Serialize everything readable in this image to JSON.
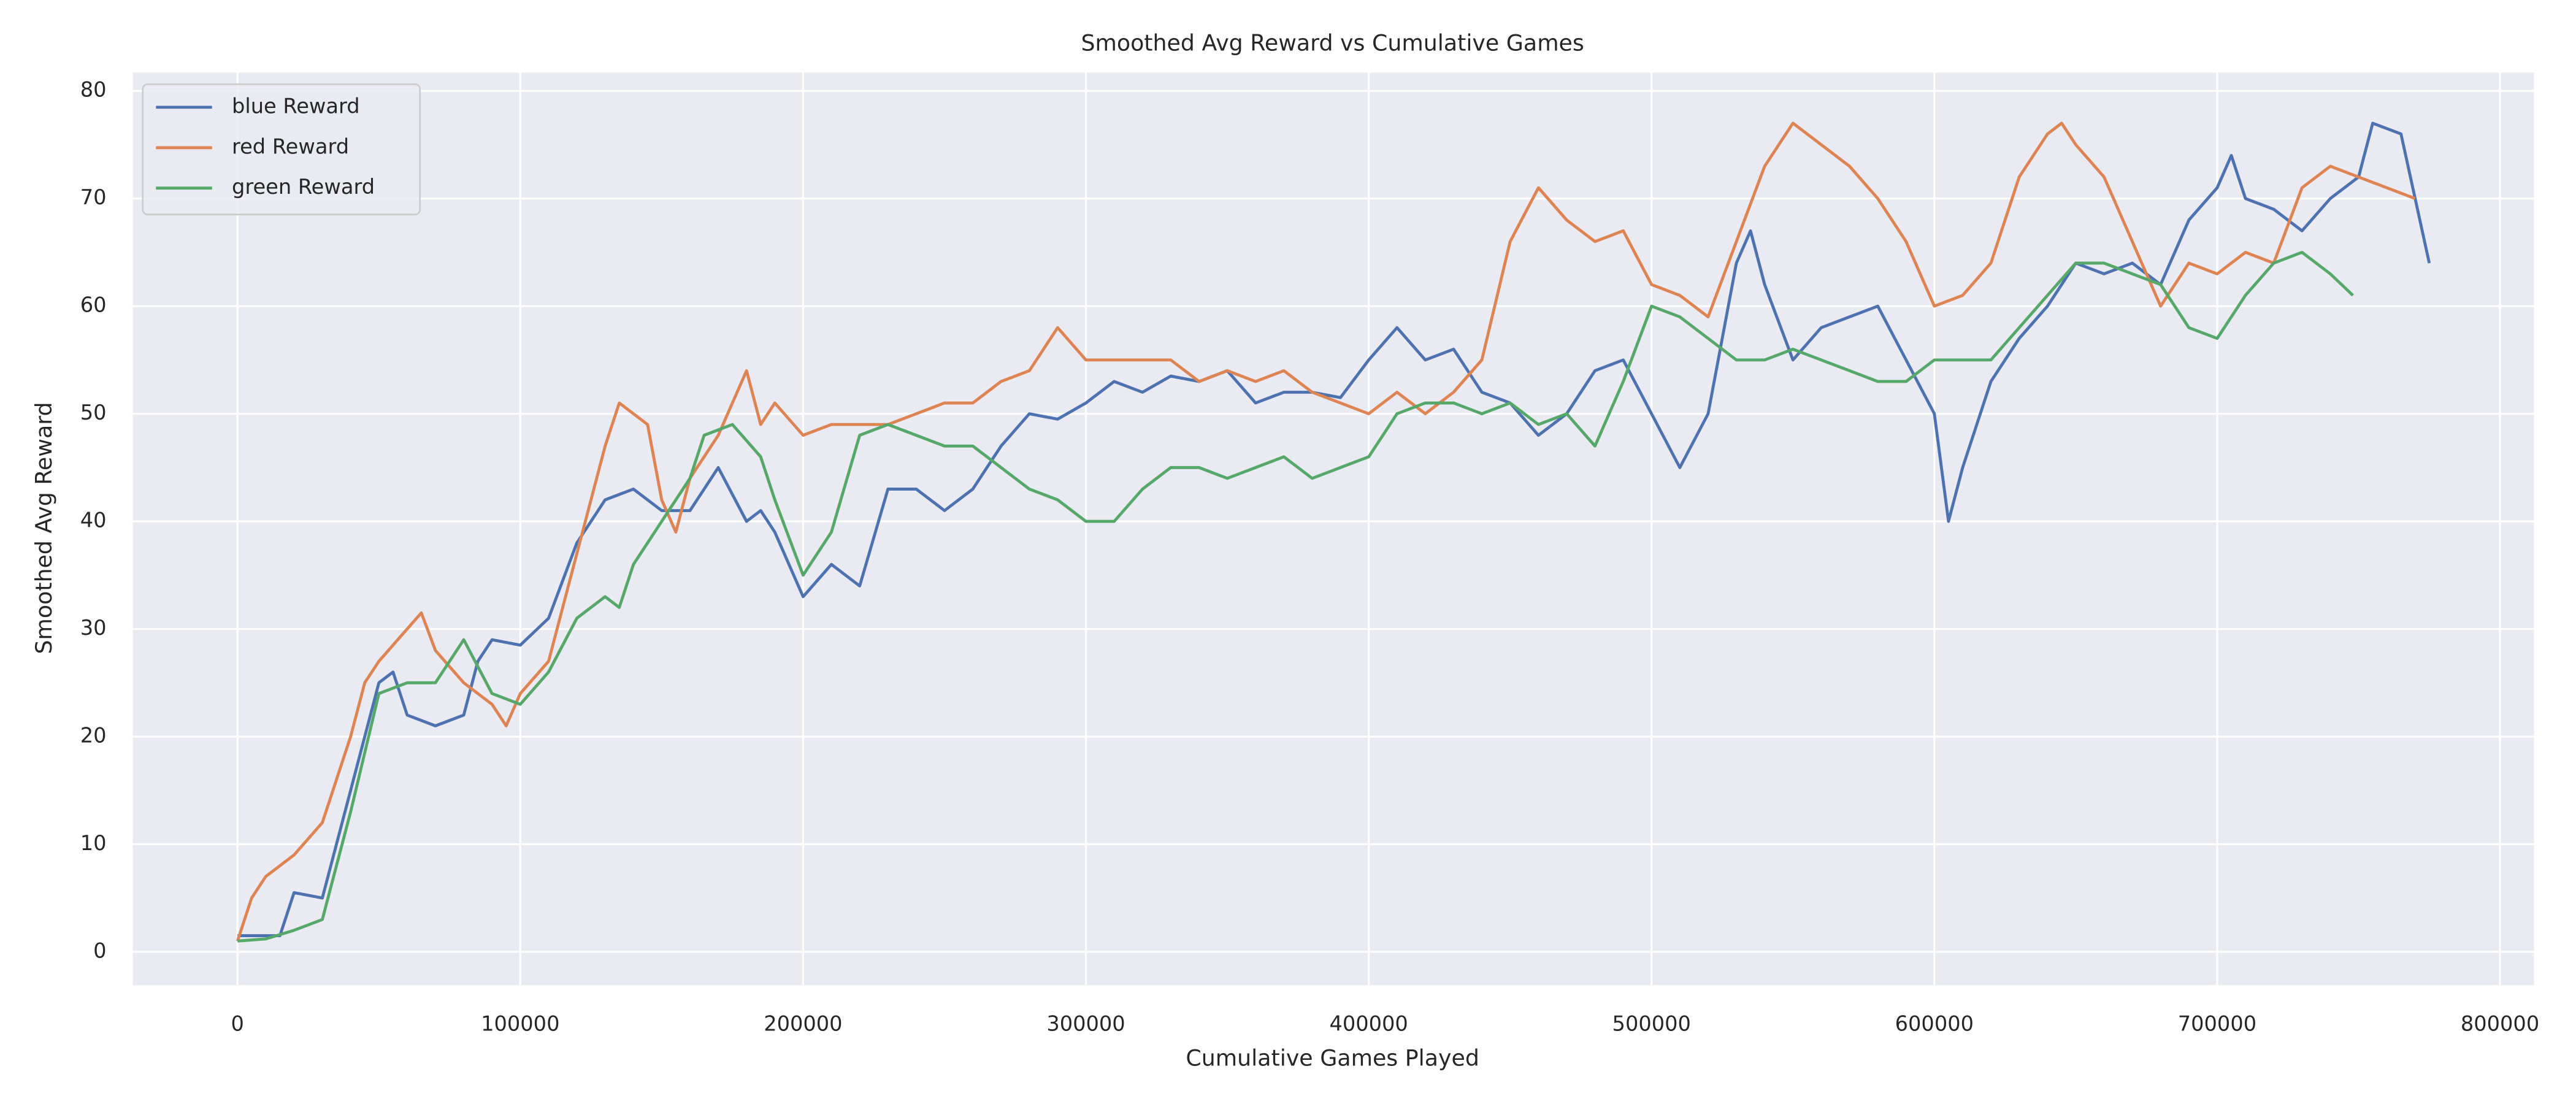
{
  "chart_data": {
    "type": "line",
    "title": "Smoothed Avg Reward vs Cumulative Games",
    "x_label": "Cumulative Games Played",
    "y_label": "Smoothed Avg Reward",
    "xlim": [
      -37000,
      812000
    ],
    "ylim": [
      -3.1,
      81.7
    ],
    "xticks": [
      0,
      100000,
      200000,
      300000,
      400000,
      500000,
      600000,
      700000,
      800000
    ],
    "yticks": [
      0,
      10,
      20,
      30,
      40,
      50,
      60,
      70,
      80
    ],
    "grid": true,
    "legend": "upper left",
    "series": [
      {
        "name": "blue Reward",
        "color": "#4c72b0",
        "x": [
          0,
          10000,
          15000,
          20000,
          30000,
          40000,
          50000,
          55000,
          60000,
          70000,
          80000,
          85000,
          90000,
          100000,
          110000,
          120000,
          130000,
          140000,
          150000,
          160000,
          170000,
          180000,
          185000,
          190000,
          200000,
          210000,
          220000,
          230000,
          240000,
          250000,
          260000,
          270000,
          280000,
          290000,
          300000,
          310000,
          320000,
          330000,
          340000,
          350000,
          360000,
          370000,
          380000,
          390000,
          400000,
          410000,
          420000,
          430000,
          440000,
          450000,
          460000,
          470000,
          480000,
          490000,
          500000,
          510000,
          520000,
          530000,
          535000,
          540000,
          550000,
          560000,
          570000,
          580000,
          590000,
          600000,
          605000,
          610000,
          620000,
          630000,
          640000,
          650000,
          660000,
          670000,
          680000,
          690000,
          700000,
          705000,
          710000,
          720000,
          730000,
          740000,
          750000,
          755000,
          765000,
          770000,
          775000
        ],
        "values": [
          1.5,
          1.5,
          1.5,
          5.5,
          5,
          15,
          25,
          26,
          22,
          21,
          22,
          27,
          29,
          28.5,
          31,
          38,
          42,
          43,
          41,
          41,
          45,
          40,
          41,
          39,
          33,
          36,
          34,
          43,
          43,
          41,
          43,
          47,
          50,
          49.5,
          51,
          53,
          52,
          53.5,
          53,
          54,
          51,
          52,
          52,
          51.5,
          55,
          58,
          55,
          56,
          52,
          51,
          48,
          50,
          54,
          55,
          50,
          45,
          50,
          64,
          67,
          62,
          55,
          58,
          59,
          60,
          55,
          50,
          40,
          45,
          53,
          57,
          60,
          64,
          63,
          64,
          62,
          68,
          71,
          74,
          70,
          69,
          67,
          70,
          72,
          77,
          76,
          70,
          64
        ]
      },
      {
        "name": "red Reward",
        "color": "#dd8452",
        "x": [
          0,
          5000,
          10000,
          20000,
          30000,
          40000,
          45000,
          50000,
          60000,
          65000,
          70000,
          80000,
          90000,
          95000,
          100000,
          110000,
          120000,
          130000,
          135000,
          140000,
          145000,
          150000,
          155000,
          160000,
          170000,
          180000,
          185000,
          190000,
          200000,
          210000,
          220000,
          230000,
          240000,
          250000,
          260000,
          270000,
          280000,
          290000,
          300000,
          310000,
          320000,
          330000,
          340000,
          350000,
          360000,
          370000,
          380000,
          390000,
          400000,
          410000,
          420000,
          430000,
          440000,
          450000,
          460000,
          470000,
          480000,
          490000,
          500000,
          510000,
          520000,
          530000,
          540000,
          550000,
          560000,
          570000,
          580000,
          590000,
          600000,
          610000,
          620000,
          630000,
          640000,
          645000,
          650000,
          660000,
          670000,
          680000,
          690000,
          700000,
          710000,
          720000,
          730000,
          740000,
          750000,
          760000,
          770000
        ],
        "values": [
          1,
          5,
          7,
          9,
          12,
          20,
          25,
          27,
          30,
          31.5,
          28,
          25,
          23,
          21,
          24,
          27,
          37,
          47,
          51,
          50,
          49,
          42,
          39,
          44,
          48,
          54,
          49,
          51,
          48,
          49,
          49,
          49,
          50,
          51,
          51,
          53,
          54,
          58,
          55,
          55,
          55,
          55,
          53,
          54,
          53,
          54,
          52,
          51,
          50,
          52,
          50,
          52,
          55,
          66,
          71,
          68,
          66,
          67,
          62,
          61,
          59,
          66,
          73,
          77,
          75,
          73,
          70,
          66,
          60,
          61,
          64,
          72,
          76,
          77,
          75,
          72,
          66,
          60,
          64,
          63,
          65,
          64,
          71,
          73,
          72,
          71,
          70
        ]
      },
      {
        "name": "green Reward",
        "color": "#55a868",
        "x": [
          0,
          10000,
          20000,
          30000,
          40000,
          50000,
          60000,
          70000,
          80000,
          90000,
          100000,
          110000,
          120000,
          130000,
          135000,
          140000,
          150000,
          160000,
          165000,
          175000,
          185000,
          190000,
          200000,
          210000,
          220000,
          230000,
          240000,
          250000,
          260000,
          270000,
          280000,
          290000,
          300000,
          310000,
          320000,
          330000,
          340000,
          350000,
          360000,
          370000,
          380000,
          390000,
          400000,
          410000,
          420000,
          430000,
          440000,
          450000,
          460000,
          470000,
          480000,
          490000,
          500000,
          510000,
          520000,
          530000,
          540000,
          550000,
          560000,
          570000,
          580000,
          590000,
          600000,
          610000,
          620000,
          630000,
          640000,
          650000,
          660000,
          670000,
          680000,
          690000,
          700000,
          710000,
          720000,
          730000,
          740000,
          748000
        ],
        "values": [
          1,
          1.2,
          2,
          3,
          13,
          24,
          25,
          25,
          29,
          24,
          23,
          26,
          31,
          33,
          32,
          36,
          40,
          44,
          48,
          49,
          46,
          42,
          35,
          39,
          48,
          49,
          48,
          47,
          47,
          45,
          43,
          42,
          40,
          40,
          43,
          45,
          45,
          44,
          45,
          46,
          44,
          45,
          46,
          50,
          51,
          51,
          50,
          51,
          49,
          50,
          47,
          53,
          60,
          59,
          57,
          55,
          55,
          56,
          55,
          54,
          53,
          53,
          55,
          55,
          55,
          58,
          61,
          64,
          64,
          63,
          62,
          58,
          57,
          61,
          64,
          65,
          63,
          61
        ]
      }
    ]
  }
}
